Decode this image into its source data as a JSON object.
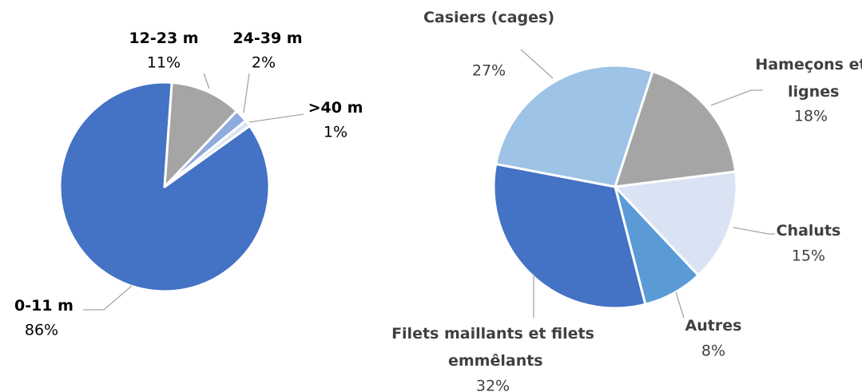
{
  "chart_data": [
    {
      "type": "pie",
      "categories": [
        "0-11 m",
        "12-23 m",
        "24-39 m",
        ">40 m"
      ],
      "values": [
        86,
        11,
        2,
        1
      ],
      "value_labels": [
        "86%",
        "11%",
        "2%",
        "1%"
      ],
      "colors": [
        "#4472c4",
        "#a5a5a5",
        "#8faadc",
        "#dae3f3"
      ]
    },
    {
      "type": "pie",
      "categories": [
        "Casiers (cages)",
        "Hameçons et lignes",
        "Chaluts",
        "Autres",
        "Filets maillants et filets emmêlants"
      ],
      "values": [
        27,
        18,
        15,
        8,
        32
      ],
      "value_labels": [
        "27%",
        "18%",
        "15%",
        "8%",
        "32%"
      ],
      "colors": [
        "#9dc3e6",
        "#a5a5a5",
        "#dae3f3",
        "#5b9bd5",
        "#4472c4"
      ]
    }
  ]
}
